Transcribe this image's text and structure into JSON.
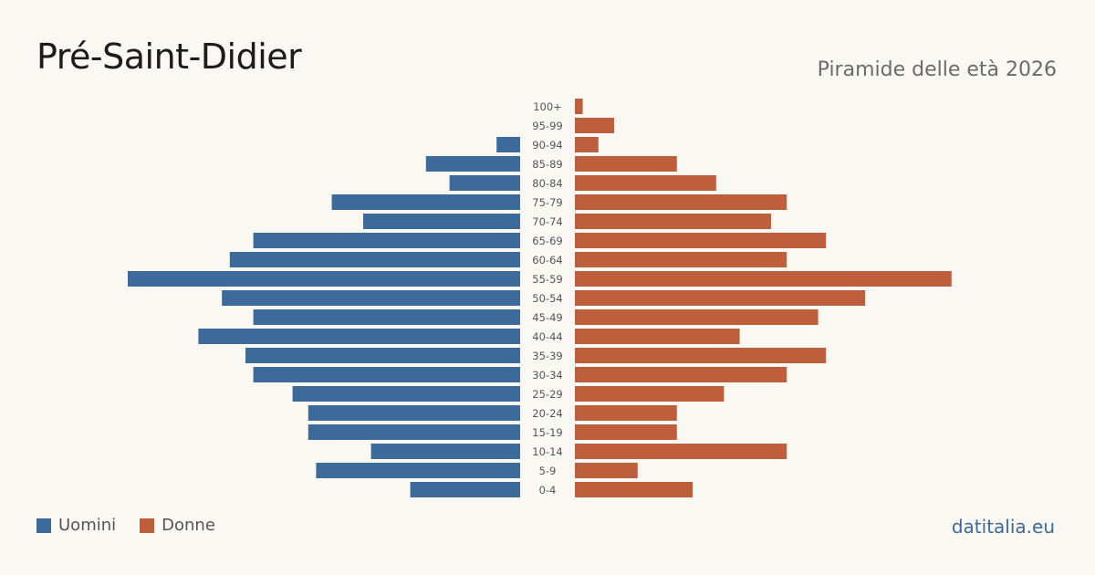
{
  "header": {
    "title": "Pré-Saint-Didier",
    "subtitle": "Piramide delle età 2026"
  },
  "legend": {
    "men_label": "Uomini",
    "women_label": "Donne"
  },
  "footer": {
    "brand": "datitalia.eu"
  },
  "colors": {
    "men": "#3b6a9b",
    "women": "#bd5e3d",
    "background": "#faf8f3"
  },
  "chart_data": {
    "type": "bar",
    "orientation": "horizontal-pyramid",
    "categories": [
      "100+",
      "95-99",
      "90-94",
      "85-89",
      "80-84",
      "75-79",
      "70-74",
      "65-69",
      "60-64",
      "55-59",
      "50-54",
      "45-49",
      "40-44",
      "35-39",
      "30-34",
      "25-29",
      "20-24",
      "15-19",
      "10-14",
      "5-9",
      "0-4"
    ],
    "series": [
      {
        "name": "Uomini",
        "side": "left",
        "values": [
          0,
          0,
          3,
          12,
          9,
          24,
          20,
          34,
          37,
          50,
          38,
          34,
          41,
          35,
          34,
          29,
          27,
          27,
          19,
          26,
          14
        ]
      },
      {
        "name": "Donne",
        "side": "right",
        "values": [
          1,
          5,
          3,
          13,
          18,
          27,
          25,
          32,
          27,
          48,
          37,
          31,
          21,
          32,
          27,
          19,
          13,
          13,
          27,
          8,
          15
        ]
      }
    ],
    "legend_position": "bottom-left",
    "grid": false
  }
}
